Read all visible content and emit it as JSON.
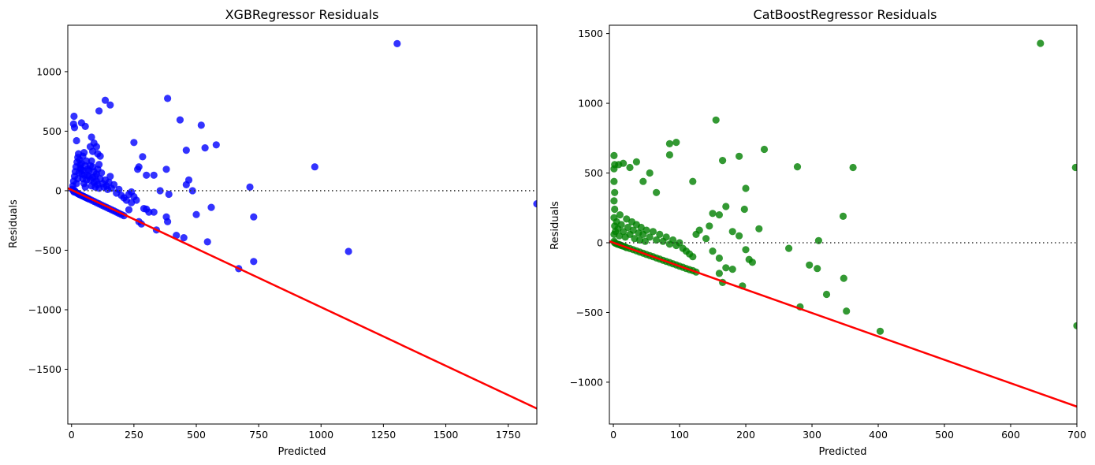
{
  "chart_data": [
    {
      "type": "scatter",
      "title": "XGBRegressor Residuals",
      "xlabel": "Predicted",
      "ylabel": "Residuals",
      "xlim": [
        -15,
        1865
      ],
      "ylim": [
        -1960,
        1390
      ],
      "xticks": [
        0,
        250,
        500,
        750,
        1000,
        1250,
        1500,
        1750
      ],
      "yticks": [
        -1500,
        -1000,
        -500,
        0,
        500,
        1000
      ],
      "point_color": "#0000ff",
      "fit_line_color": "#ff0000",
      "zero_line": true,
      "grid": false,
      "fit_line": {
        "x": [
          -15,
          1865
        ],
        "y": [
          21,
          -1830
        ]
      },
      "points": [
        [
          3,
          13
        ],
        [
          6,
          5
        ],
        [
          8,
          -3
        ],
        [
          10,
          -10
        ],
        [
          12,
          2
        ],
        [
          15,
          -8
        ],
        [
          18,
          -15
        ],
        [
          22,
          -20
        ],
        [
          26,
          -25
        ],
        [
          30,
          -30
        ],
        [
          35,
          -35
        ],
        [
          40,
          -40
        ],
        [
          45,
          -45
        ],
        [
          50,
          -50
        ],
        [
          55,
          -55
        ],
        [
          60,
          -60
        ],
        [
          65,
          -65
        ],
        [
          70,
          -70
        ],
        [
          80,
          -80
        ],
        [
          90,
          -90
        ],
        [
          100,
          -100
        ],
        [
          110,
          -110
        ],
        [
          120,
          -120
        ],
        [
          130,
          -130
        ],
        [
          140,
          -140
        ],
        [
          150,
          -150
        ],
        [
          160,
          -160
        ],
        [
          170,
          -170
        ],
        [
          180,
          -180
        ],
        [
          190,
          -190
        ],
        [
          200,
          -200
        ],
        [
          210,
          -210
        ],
        [
          5,
          40
        ],
        [
          8,
          80
        ],
        [
          12,
          120
        ],
        [
          15,
          160
        ],
        [
          18,
          200
        ],
        [
          22,
          240
        ],
        [
          25,
          280
        ],
        [
          28,
          310
        ],
        [
          32,
          260
        ],
        [
          35,
          220
        ],
        [
          38,
          180
        ],
        [
          42,
          140
        ],
        [
          45,
          100
        ],
        [
          50,
          60
        ],
        [
          55,
          30
        ],
        [
          60,
          90
        ],
        [
          65,
          130
        ],
        [
          70,
          170
        ],
        [
          75,
          210
        ],
        [
          80,
          250
        ],
        [
          85,
          200
        ],
        [
          90,
          160
        ],
        [
          95,
          120
        ],
        [
          100,
          80
        ],
        [
          105,
          50
        ],
        [
          110,
          20
        ],
        [
          115,
          100
        ],
        [
          120,
          150
        ],
        [
          125,
          60
        ],
        [
          130,
          30
        ],
        [
          135,
          90
        ],
        [
          140,
          40
        ],
        [
          145,
          10
        ],
        [
          150,
          70
        ],
        [
          155,
          120
        ],
        [
          160,
          20
        ],
        [
          170,
          50
        ],
        [
          180,
          -20
        ],
        [
          190,
          10
        ],
        [
          200,
          -40
        ],
        [
          210,
          -60
        ],
        [
          220,
          -80
        ],
        [
          230,
          -30
        ],
        [
          240,
          -10
        ],
        [
          20,
          60
        ],
        [
          25,
          100
        ],
        [
          30,
          150
        ],
        [
          35,
          190
        ],
        [
          40,
          230
        ],
        [
          45,
          170
        ],
        [
          50,
          130
        ],
        [
          55,
          210
        ],
        [
          60,
          250
        ],
        [
          65,
          180
        ],
        [
          70,
          120
        ],
        [
          75,
          90
        ],
        [
          80,
          40
        ],
        [
          85,
          110
        ],
        [
          90,
          70
        ],
        [
          95,
          30
        ],
        [
          100,
          140
        ],
        [
          105,
          180
        ],
        [
          110,
          220
        ],
        [
          10,
          625
        ],
        [
          8,
          560
        ],
        [
          12,
          530
        ],
        [
          40,
          570
        ],
        [
          55,
          540
        ],
        [
          50,
          320
        ],
        [
          20,
          420
        ],
        [
          45,
          290
        ],
        [
          80,
          450
        ],
        [
          90,
          400
        ],
        [
          100,
          370
        ],
        [
          75,
          370
        ],
        [
          85,
          330
        ],
        [
          105,
          310
        ],
        [
          115,
          290
        ],
        [
          110,
          670
        ],
        [
          135,
          760
        ],
        [
          155,
          720
        ],
        [
          385,
          775
        ],
        [
          250,
          405
        ],
        [
          265,
          180
        ],
        [
          285,
          285
        ],
        [
          270,
          200
        ],
        [
          300,
          130
        ],
        [
          330,
          130
        ],
        [
          355,
          0
        ],
        [
          380,
          180
        ],
        [
          435,
          595
        ],
        [
          460,
          340
        ],
        [
          470,
          90
        ],
        [
          485,
          0
        ],
        [
          520,
          550
        ],
        [
          535,
          360
        ],
        [
          580,
          385
        ],
        [
          460,
          50
        ],
        [
          975,
          200
        ],
        [
          1305,
          1235
        ],
        [
          1865,
          -110
        ],
        [
          715,
          30
        ],
        [
          730,
          -220
        ],
        [
          730,
          -595
        ],
        [
          560,
          -140
        ],
        [
          545,
          -430
        ],
        [
          500,
          -200
        ],
        [
          450,
          -395
        ],
        [
          420,
          -375
        ],
        [
          380,
          -220
        ],
        [
          385,
          -260
        ],
        [
          390,
          -30
        ],
        [
          340,
          -330
        ],
        [
          330,
          -180
        ],
        [
          310,
          -180
        ],
        [
          300,
          -155
        ],
        [
          290,
          -150
        ],
        [
          280,
          -280
        ],
        [
          270,
          -260
        ],
        [
          260,
          -80
        ],
        [
          250,
          -50
        ],
        [
          240,
          -100
        ],
        [
          230,
          -160
        ],
        [
          670,
          -655
        ],
        [
          1110,
          -510
        ]
      ]
    },
    {
      "type": "scatter",
      "title": "CatBoostRegressor Residuals",
      "xlabel": "Predicted",
      "ylabel": "Residuals",
      "xlim": [
        -6,
        700
      ],
      "ylim": [
        -1300,
        1560
      ],
      "xticks": [
        0,
        100,
        200,
        300,
        400,
        500,
        600,
        700
      ],
      "yticks": [
        -1000,
        -500,
        0,
        500,
        1000,
        1500
      ],
      "point_color": "#008000",
      "fit_line_color": "#ff0000",
      "zero_line": true,
      "grid": false,
      "fit_line": {
        "x": [
          -6,
          700
        ],
        "y": [
          10,
          -1175
        ]
      },
      "points": [
        [
          1,
          10
        ],
        [
          2,
          0
        ],
        [
          4,
          -5
        ],
        [
          6,
          -10
        ],
        [
          8,
          -12
        ],
        [
          10,
          -15
        ],
        [
          12,
          -20
        ],
        [
          15,
          -25
        ],
        [
          18,
          -30
        ],
        [
          20,
          -35
        ],
        [
          25,
          -42
        ],
        [
          30,
          -50
        ],
        [
          35,
          -58
        ],
        [
          40,
          -67
        ],
        [
          45,
          -75
        ],
        [
          50,
          -84
        ],
        [
          55,
          -92
        ],
        [
          60,
          -100
        ],
        [
          65,
          -109
        ],
        [
          70,
          -117
        ],
        [
          75,
          -126
        ],
        [
          80,
          -134
        ],
        [
          85,
          -142
        ],
        [
          90,
          -151
        ],
        [
          95,
          -159
        ],
        [
          100,
          -168
        ],
        [
          105,
          -176
        ],
        [
          110,
          -185
        ],
        [
          115,
          -193
        ],
        [
          120,
          -200
        ],
        [
          125,
          -210
        ],
        [
          1,
          60
        ],
        [
          2,
          120
        ],
        [
          1,
          180
        ],
        [
          2,
          240
        ],
        [
          1,
          300
        ],
        [
          2,
          360
        ],
        [
          1,
          440
        ],
        [
          1,
          530
        ],
        [
          2,
          560
        ],
        [
          1,
          625
        ],
        [
          3,
          80
        ],
        [
          5,
          150
        ],
        [
          7,
          100
        ],
        [
          9,
          50
        ],
        [
          10,
          200
        ],
        [
          12,
          130
        ],
        [
          15,
          80
        ],
        [
          18,
          40
        ],
        [
          20,
          170
        ],
        [
          22,
          110
        ],
        [
          25,
          60
        ],
        [
          28,
          150
        ],
        [
          30,
          90
        ],
        [
          32,
          30
        ],
        [
          35,
          130
        ],
        [
          38,
          70
        ],
        [
          40,
          20
        ],
        [
          42,
          110
        ],
        [
          45,
          60
        ],
        [
          48,
          10
        ],
        [
          50,
          90
        ],
        [
          55,
          40
        ],
        [
          60,
          80
        ],
        [
          65,
          20
        ],
        [
          70,
          60
        ],
        [
          75,
          10
        ],
        [
          80,
          40
        ],
        [
          85,
          -10
        ],
        [
          90,
          20
        ],
        [
          95,
          -20
        ],
        [
          100,
          0
        ],
        [
          105,
          -40
        ],
        [
          110,
          -60
        ],
        [
          115,
          -80
        ],
        [
          120,
          -100
        ],
        [
          8,
          560
        ],
        [
          15,
          570
        ],
        [
          25,
          540
        ],
        [
          35,
          580
        ],
        [
          45,
          440
        ],
        [
          55,
          500
        ],
        [
          65,
          360
        ],
        [
          85,
          630
        ],
        [
          85,
          710
        ],
        [
          95,
          720
        ],
        [
          120,
          440
        ],
        [
          155,
          880
        ],
        [
          165,
          590
        ],
        [
          190,
          620
        ],
        [
          200,
          390
        ],
        [
          228,
          670
        ],
        [
          198,
          240
        ],
        [
          170,
          260
        ],
        [
          160,
          200
        ],
        [
          150,
          210
        ],
        [
          145,
          120
        ],
        [
          130,
          90
        ],
        [
          125,
          60
        ],
        [
          140,
          30
        ],
        [
          150,
          -60
        ],
        [
          160,
          -110
        ],
        [
          170,
          -180
        ],
        [
          180,
          80
        ],
        [
          190,
          50
        ],
        [
          200,
          -50
        ],
        [
          205,
          -120
        ],
        [
          210,
          -140
        ],
        [
          220,
          100
        ],
        [
          195,
          -310
        ],
        [
          165,
          -285
        ],
        [
          160,
          -220
        ],
        [
          180,
          -190
        ],
        [
          265,
          -40
        ],
        [
          278,
          545
        ],
        [
          282,
          -460
        ],
        [
          296,
          -160
        ],
        [
          310,
          15
        ],
        [
          308,
          -185
        ],
        [
          322,
          -370
        ],
        [
          347,
          190
        ],
        [
          348,
          -255
        ],
        [
          352,
          -490
        ],
        [
          362,
          540
        ],
        [
          403,
          -635
        ],
        [
          645,
          1430
        ],
        [
          698,
          540
        ],
        [
          700,
          -595
        ]
      ]
    }
  ]
}
